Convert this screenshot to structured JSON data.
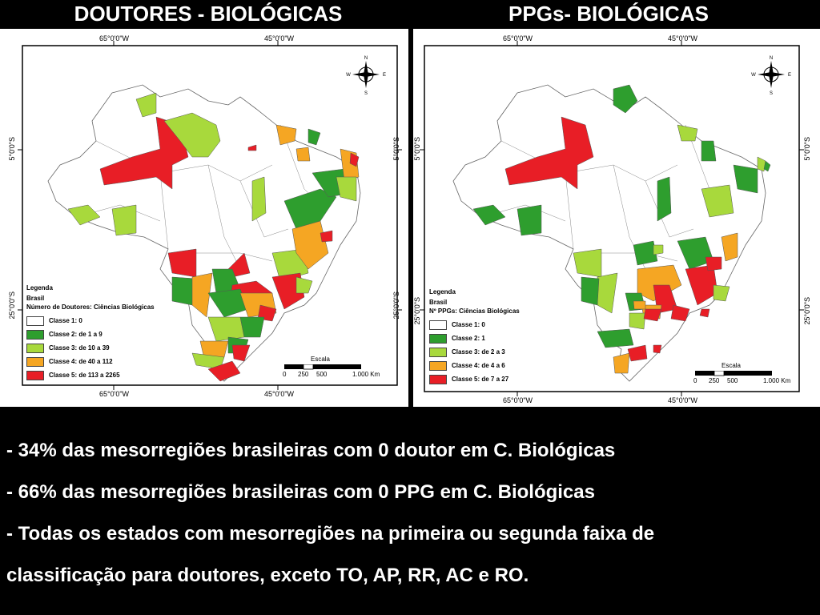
{
  "titles": {
    "left": "DOUTORES - BIOLÓGICAS",
    "right": "PPGs- BIOLÓGICAS"
  },
  "map_left": {
    "coords": {
      "lon1": "65°0'0\"W",
      "lon2": "45°0'0\"W",
      "lat1": "5°0'0\"S",
      "lat2": "25°0'0\"S"
    },
    "legend": {
      "heading": "Legenda",
      "sub": "Brasil",
      "variable": "Número de Doutores: Ciências Biológicas",
      "classes": [
        {
          "label": "Classe 1: 0",
          "color": "#ffffff"
        },
        {
          "label": "Classe 2: de 1 a 9",
          "color": "#2e9e2e"
        },
        {
          "label": "Classe 3: de 10 a 39",
          "color": "#a8d93c"
        },
        {
          "label": "Classe 4: de 40 a 112",
          "color": "#f5a623"
        },
        {
          "label": "Classe 5: de 113 a 2265",
          "color": "#e81e26"
        }
      ]
    },
    "scale": {
      "title": "Escala",
      "ticks": [
        "0",
        "250",
        "500",
        "1.000 Km"
      ]
    }
  },
  "map_right": {
    "coords": {
      "lon1": "65°0'0\"W",
      "lon2": "45°0'0\"W",
      "lat1": "5°0'0\"S",
      "lat2": "25°0'0\"S"
    },
    "legend": {
      "heading": "Legenda",
      "sub": "Brasil",
      "variable": "Nº PPGs: Ciências Biológicas",
      "classes": [
        {
          "label": "Classe 1: 0",
          "color": "#ffffff"
        },
        {
          "label": "Classe 2: 1",
          "color": "#2e9e2e"
        },
        {
          "label": "Classe 3: de 2 a 3",
          "color": "#a8d93c"
        },
        {
          "label": "Classe 4: de 4 a 6",
          "color": "#f5a623"
        },
        {
          "label": "Classe 5: de 7 a 27",
          "color": "#e81e26"
        }
      ]
    },
    "scale": {
      "title": "Escala",
      "ticks": [
        "0",
        "250",
        "500",
        "1.000 Km"
      ]
    }
  },
  "compass": {
    "n": "N",
    "s": "S",
    "e": "E",
    "w": "W"
  },
  "bullets": [
    "- 34% das mesorregiões brasileiras com 0 doutor  em C. Biológicas",
    "- 66% das mesorregiões brasileiras com 0 PPG em C. Biológicas",
    "- Todas os estados com mesorregiões na primeira ou segunda faixa de",
    "classificação para doutores, exceto TO, AP, RR, AC e RO."
  ]
}
